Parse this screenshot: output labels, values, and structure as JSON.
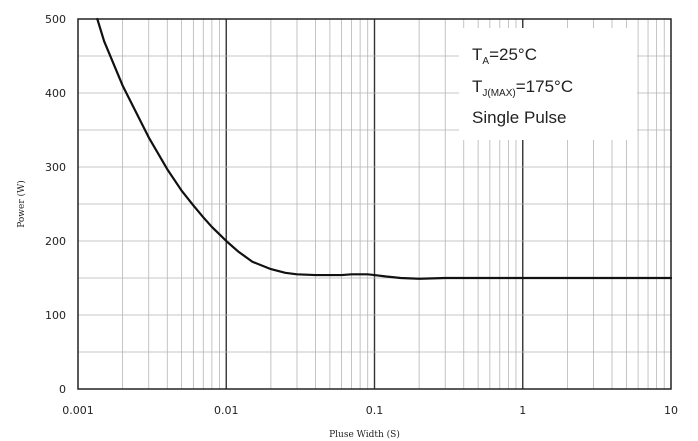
{
  "chart_data": {
    "type": "line",
    "xlabel": "Pluse Width (S)",
    "ylabel": "Power (W)",
    "x_scale": "log",
    "xlim": [
      0.001,
      10
    ],
    "ylim": [
      0,
      500
    ],
    "x_ticks": [
      "0.001",
      "0.01",
      "0.1",
      "1",
      "10"
    ],
    "y_ticks": [
      "0",
      "100",
      "200",
      "300",
      "400",
      "500"
    ],
    "grid": true,
    "legend_placement": "top-right",
    "annotation": {
      "line1": {
        "main": "T",
        "sub": "A",
        "rest": "=25°C"
      },
      "line2": {
        "main": "T",
        "sub": "J(MAX)",
        "rest": "=175°C"
      },
      "line3": "Single Pulse"
    },
    "series": [
      {
        "color": "#111111",
        "x": [
          0.00135,
          0.0015,
          0.002,
          0.003,
          0.004,
          0.005,
          0.006,
          0.007,
          0.008,
          0.009,
          0.01,
          0.012,
          0.015,
          0.02,
          0.025,
          0.03,
          0.04,
          0.05,
          0.06,
          0.07,
          0.08,
          0.09,
          0.1,
          0.12,
          0.15,
          0.2,
          0.3,
          0.5,
          1,
          2,
          5,
          10
        ],
        "y": [
          500,
          470,
          410,
          340,
          297,
          268,
          248,
          232,
          219,
          209,
          200,
          186,
          172,
          162,
          157,
          155,
          154,
          154,
          154,
          155,
          155,
          155,
          154,
          152,
          150,
          149,
          150,
          150,
          150,
          150,
          150,
          150
        ]
      }
    ]
  }
}
